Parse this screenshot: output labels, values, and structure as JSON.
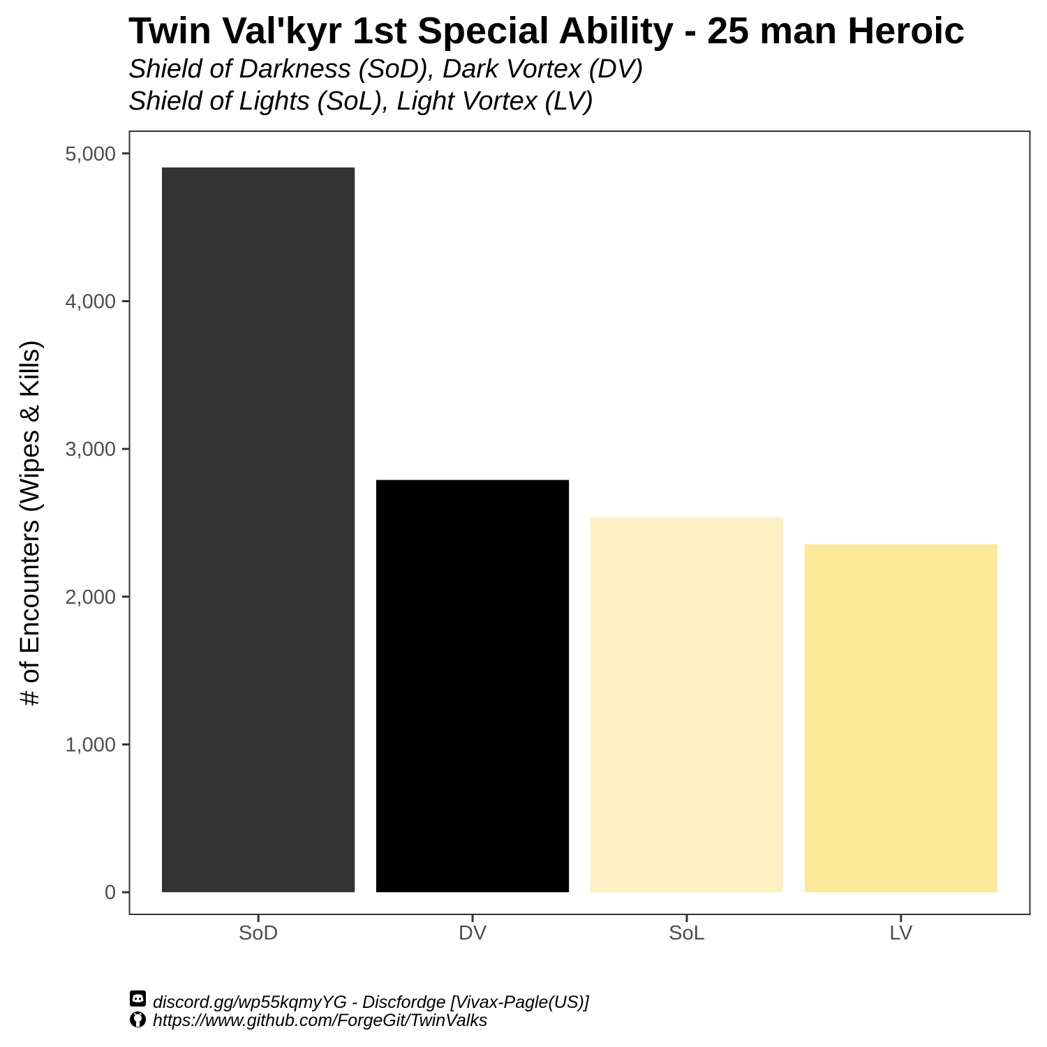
{
  "chart_data": {
    "type": "bar",
    "title": "Twin Val'kyr 1st Special Ability - 25 man Heroic",
    "subtitle_lines": [
      "Shield of Darkness (SoD), Dark Vortex (DV)",
      "Shield of Lights (SoL), Light Vortex (LV)"
    ],
    "xlabel": "",
    "ylabel": "# of Encounters (Wipes & Kills)",
    "categories": [
      "SoD",
      "DV",
      "SoL",
      "LV"
    ],
    "values": [
      4905,
      2790,
      2535,
      2355
    ],
    "colors": [
      "#333333",
      "#000000",
      "#fdf0c2",
      "#fde99a"
    ],
    "ylim": [
      -150,
      5150
    ],
    "yticks": [
      0,
      1000,
      2000,
      3000,
      4000,
      5000
    ],
    "ytick_labels": [
      "0",
      "1,000",
      "2,000",
      "3,000",
      "4,000",
      "5,000"
    ],
    "grid": false,
    "legend": "none"
  },
  "caption": {
    "lines": [
      "discord.gg/wp55kqmyYG - Discfordge [Vivax-Pagle(US)]",
      "https://www.github.com/ForgeGit/TwinValks"
    ],
    "icons": [
      "discord-icon",
      "github-icon"
    ]
  }
}
